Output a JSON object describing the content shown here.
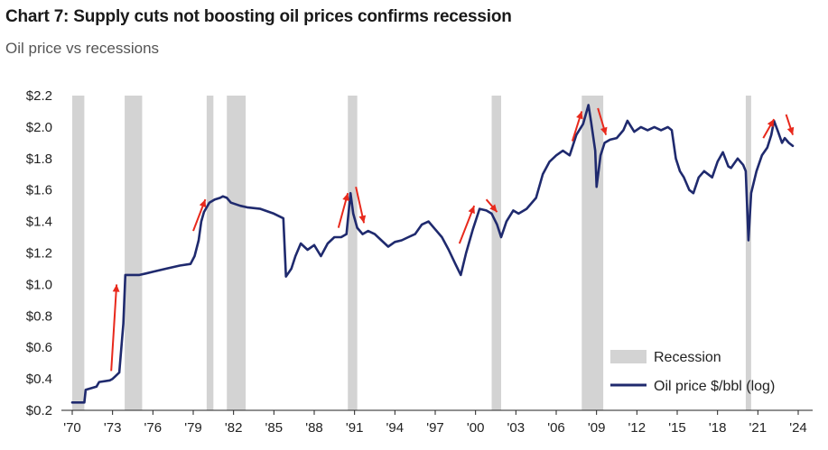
{
  "chart_data": {
    "type": "line",
    "title": "Chart 7: Supply cuts not boosting oil prices confirms recession",
    "subtitle": "Oil price vs recessions",
    "xlabel": "",
    "ylabel": "",
    "xlim": [
      1970,
      2024
    ],
    "ylim": [
      0.2,
      2.2
    ],
    "yticks": [
      {
        "value": 0.2,
        "label": "$0.2"
      },
      {
        "value": 0.4,
        "label": "$0.4"
      },
      {
        "value": 0.6,
        "label": "$0.6"
      },
      {
        "value": 0.8,
        "label": "$0.8"
      },
      {
        "value": 1.0,
        "label": "$1.0"
      },
      {
        "value": 1.2,
        "label": "$1.2"
      },
      {
        "value": 1.4,
        "label": "$1.4"
      },
      {
        "value": 1.6,
        "label": "$1.6"
      },
      {
        "value": 1.8,
        "label": "$1.8"
      },
      {
        "value": 2.0,
        "label": "$2.0"
      },
      {
        "value": 2.2,
        "label": "$2.2"
      }
    ],
    "xticks": [
      {
        "value": 1970,
        "label": "'70"
      },
      {
        "value": 1973,
        "label": "'73"
      },
      {
        "value": 1976,
        "label": "'76"
      },
      {
        "value": 1979,
        "label": "'79"
      },
      {
        "value": 1982,
        "label": "'82"
      },
      {
        "value": 1985,
        "label": "'85"
      },
      {
        "value": 1988,
        "label": "'88"
      },
      {
        "value": 1991,
        "label": "'91"
      },
      {
        "value": 1994,
        "label": "'94"
      },
      {
        "value": 1997,
        "label": "'97"
      },
      {
        "value": 2000,
        "label": "'00"
      },
      {
        "value": 2003,
        "label": "'03"
      },
      {
        "value": 2006,
        "label": "'06"
      },
      {
        "value": 2009,
        "label": "'09"
      },
      {
        "value": 2012,
        "label": "'12"
      },
      {
        "value": 2015,
        "label": "'15"
      },
      {
        "value": 2018,
        "label": "'18"
      },
      {
        "value": 2021,
        "label": "'21"
      },
      {
        "value": 2024,
        "label": "'24"
      }
    ],
    "recessions": [
      [
        1970.0,
        1970.9
      ],
      [
        1973.9,
        1975.2
      ],
      [
        1980.0,
        1980.5
      ],
      [
        1981.5,
        1982.9
      ],
      [
        1990.5,
        1991.2
      ],
      [
        2001.2,
        2001.9
      ],
      [
        2007.9,
        2009.5
      ],
      [
        2020.1,
        2020.5
      ]
    ],
    "series": [
      {
        "name": "Oil price $/bbl (log)",
        "color": "#1f2a6e",
        "x": [
          1970.0,
          1970.9,
          1971.0,
          1971.8,
          1972.0,
          1972.8,
          1973.0,
          1973.5,
          1973.8,
          1973.95,
          1974.1,
          1975.0,
          1975.5,
          1976.0,
          1977.0,
          1978.0,
          1978.8,
          1979.1,
          1979.4,
          1979.6,
          1979.8,
          1980.2,
          1980.6,
          1981.0,
          1981.2,
          1981.5,
          1981.8,
          1982.5,
          1983.0,
          1984.0,
          1985.0,
          1985.7,
          1985.9,
          1986.3,
          1986.6,
          1987.0,
          1987.5,
          1988.0,
          1988.5,
          1989.0,
          1989.5,
          1990.0,
          1990.4,
          1990.7,
          1990.9,
          1991.2,
          1991.6,
          1992.0,
          1992.5,
          1993.0,
          1993.5,
          1994.0,
          1994.5,
          1995.0,
          1995.5,
          1996.0,
          1996.5,
          1997.0,
          1997.5,
          1998.0,
          1998.5,
          1998.9,
          1999.3,
          1999.8,
          2000.3,
          2000.8,
          2001.2,
          2001.6,
          2001.9,
          2002.3,
          2002.8,
          2003.2,
          2003.8,
          2004.5,
          2005.0,
          2005.5,
          2006.0,
          2006.5,
          2007.0,
          2007.5,
          2008.0,
          2008.4,
          2008.6,
          2008.9,
          2009.0,
          2009.3,
          2009.6,
          2010.0,
          2010.5,
          2011.0,
          2011.3,
          2011.8,
          2012.3,
          2012.8,
          2013.3,
          2013.8,
          2014.3,
          2014.6,
          2014.9,
          2015.2,
          2015.5,
          2015.9,
          2016.2,
          2016.6,
          2017.0,
          2017.6,
          2018.0,
          2018.4,
          2018.8,
          2019.0,
          2019.5,
          2019.9,
          2020.1,
          2020.3,
          2020.5,
          2020.9,
          2021.3,
          2021.7,
          2022.0,
          2022.2,
          2022.5,
          2022.8,
          2023.0,
          2023.3,
          2023.6
        ],
        "values": [
          0.25,
          0.25,
          0.33,
          0.35,
          0.38,
          0.39,
          0.4,
          0.44,
          0.75,
          1.06,
          1.06,
          1.06,
          1.07,
          1.08,
          1.1,
          1.12,
          1.13,
          1.18,
          1.28,
          1.4,
          1.46,
          1.52,
          1.54,
          1.55,
          1.56,
          1.55,
          1.52,
          1.5,
          1.49,
          1.48,
          1.45,
          1.42,
          1.05,
          1.1,
          1.18,
          1.26,
          1.22,
          1.25,
          1.18,
          1.26,
          1.3,
          1.3,
          1.32,
          1.58,
          1.45,
          1.36,
          1.32,
          1.34,
          1.32,
          1.28,
          1.24,
          1.27,
          1.28,
          1.3,
          1.32,
          1.38,
          1.4,
          1.35,
          1.3,
          1.22,
          1.13,
          1.06,
          1.2,
          1.35,
          1.48,
          1.47,
          1.45,
          1.38,
          1.3,
          1.4,
          1.47,
          1.45,
          1.48,
          1.55,
          1.7,
          1.78,
          1.82,
          1.85,
          1.82,
          1.95,
          2.02,
          2.14,
          2.03,
          1.85,
          1.62,
          1.82,
          1.9,
          1.92,
          1.93,
          1.98,
          2.04,
          1.97,
          2.0,
          1.98,
          2.0,
          1.98,
          2.0,
          1.98,
          1.8,
          1.72,
          1.68,
          1.6,
          1.58,
          1.68,
          1.72,
          1.68,
          1.78,
          1.84,
          1.75,
          1.74,
          1.8,
          1.76,
          1.72,
          1.28,
          1.58,
          1.72,
          1.82,
          1.87,
          1.95,
          2.04,
          1.97,
          1.9,
          1.93,
          1.9,
          1.88
        ]
      }
    ],
    "arrows": [
      {
        "from": [
          1972.9,
          0.45
        ],
        "to": [
          1973.3,
          1.0
        ]
      },
      {
        "from": [
          1979.0,
          1.34
        ],
        "to": [
          1979.9,
          1.54
        ]
      },
      {
        "from": [
          1989.8,
          1.36
        ],
        "to": [
          1990.5,
          1.58
        ]
      },
      {
        "from": [
          1991.1,
          1.62
        ],
        "to": [
          1991.7,
          1.39
        ]
      },
      {
        "from": [
          1998.8,
          1.26
        ],
        "to": [
          1999.9,
          1.5
        ]
      },
      {
        "from": [
          2000.8,
          1.54
        ],
        "to": [
          2001.6,
          1.46
        ]
      },
      {
        "from": [
          2007.2,
          1.91
        ],
        "to": [
          2007.9,
          2.1
        ]
      },
      {
        "from": [
          2009.1,
          2.12
        ],
        "to": [
          2009.7,
          1.95
        ]
      },
      {
        "from": [
          2021.4,
          1.93
        ],
        "to": [
          2022.2,
          2.05
        ]
      },
      {
        "from": [
          2023.1,
          2.08
        ],
        "to": [
          2023.6,
          1.95
        ]
      }
    ],
    "legend": {
      "position": "bottom-right",
      "recession_label": "Recession",
      "recession_color": "#d3d3d3",
      "line_label": "Oil price $/bbl (log)"
    },
    "arrow_color": "#e8291c",
    "grid": false
  }
}
